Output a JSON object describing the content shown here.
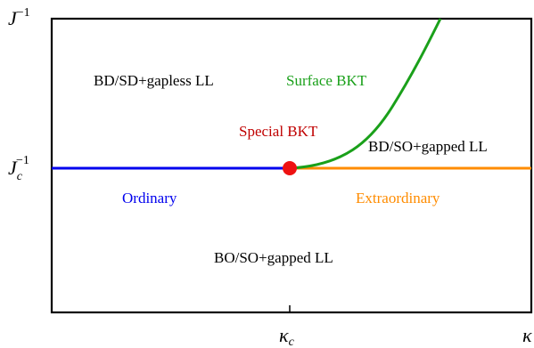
{
  "axes": {
    "y_top_label": {
      "base": "J",
      "sup": "−1"
    },
    "y_mid_label": {
      "base": "J",
      "sub": "c",
      "sup": "−1"
    },
    "x_mid_label": {
      "base": "κ",
      "sub": "c"
    },
    "x_right_label": {
      "base": "κ"
    }
  },
  "regions": {
    "upper_left": "BD/SD+gapless LL",
    "surface_bkt": "Surface BKT",
    "special_bkt": "Special BKT",
    "right_mid": "BD/SO+gapped LL",
    "ordinary": "Ordinary",
    "extraordinary": "Extraordinary",
    "lower": "BO/SO+gapped LL"
  },
  "colors": {
    "ordinary_line": "#0000ee",
    "extraordinary_line": "#ff8c00",
    "surface_curve": "#1aa01a",
    "special_point": "#ee1111",
    "special_label": "#c00000",
    "surface_label": "#1aa01a",
    "ordinary_label": "#0000ee",
    "extraordinary_label": "#ff8c00",
    "frame": "#000000",
    "text": "#000000"
  }
}
